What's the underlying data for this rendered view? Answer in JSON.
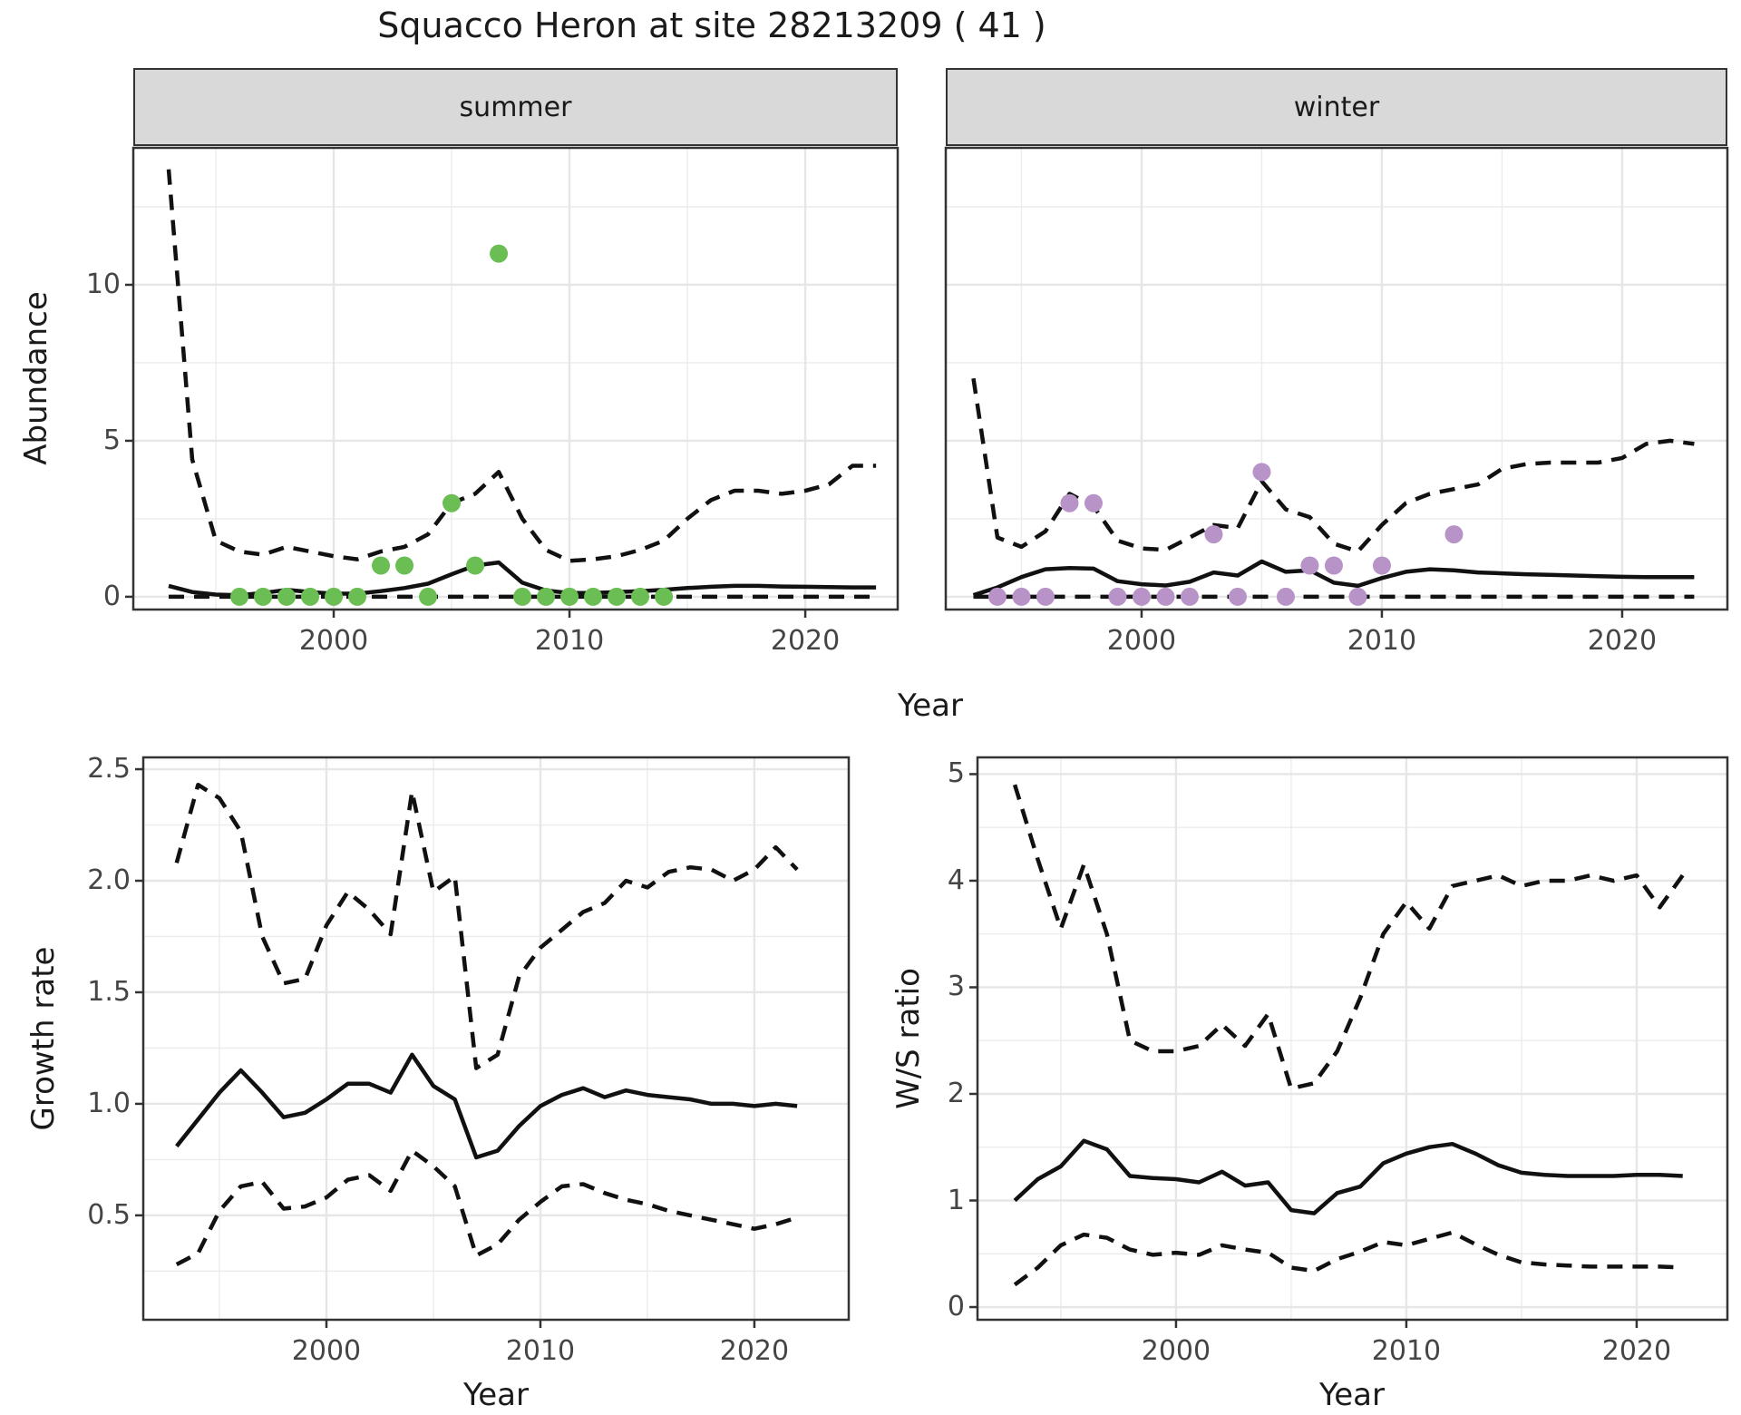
{
  "title": "Squacco Heron at site 28213209 ( 41 )",
  "axis_titles": {
    "y_abundance": "Abundance",
    "x_top": "Year",
    "y_growth": "Growth rate",
    "x_growth": "Year",
    "y_ws": "W/S ratio",
    "x_ws": "Year"
  },
  "colors": {
    "summer_point": "#6bbe53",
    "winter_point": "#b893c8",
    "line": "#111111",
    "grid_major": "#e6e6e6",
    "grid_minor": "#ececec",
    "panel_border": "#333333",
    "strip_bg": "#d9d9d9",
    "tick_label": "#454545",
    "text": "#1a1a1a"
  },
  "chart_data": [
    {
      "id": "abundance-summer",
      "type": "line",
      "facet_label": "summer",
      "x": [
        1993,
        1994,
        1995,
        1996,
        1997,
        1998,
        1999,
        2000,
        2001,
        2002,
        2003,
        2004,
        2005,
        2006,
        2007,
        2008,
        2009,
        2010,
        2011,
        2012,
        2013,
        2014,
        2015,
        2016,
        2017,
        2018,
        2019,
        2020,
        2021,
        2022,
        2023
      ],
      "series": [
        {
          "name": "median",
          "style": "solid",
          "values": [
            0.35,
            0.15,
            0.07,
            0.05,
            0.12,
            0.22,
            0.15,
            0.1,
            0.1,
            0.18,
            0.28,
            0.42,
            0.72,
            1.0,
            1.1,
            0.45,
            0.2,
            0.12,
            0.12,
            0.15,
            0.18,
            0.22,
            0.28,
            0.32,
            0.35,
            0.35,
            0.33,
            0.32,
            0.31,
            0.3,
            0.3
          ]
        },
        {
          "name": "upper_ci",
          "style": "dashed",
          "values": [
            13.7,
            4.4,
            1.8,
            1.45,
            1.35,
            1.6,
            1.45,
            1.3,
            1.2,
            1.45,
            1.6,
            2.0,
            3.0,
            3.3,
            4.0,
            2.5,
            1.5,
            1.15,
            1.2,
            1.3,
            1.5,
            1.8,
            2.5,
            3.1,
            3.4,
            3.4,
            3.3,
            3.4,
            3.6,
            4.2,
            4.2
          ]
        },
        {
          "name": "lower_ci",
          "style": "dashed",
          "values": [
            0,
            0,
            0,
            0,
            0,
            0,
            0,
            0,
            0,
            0,
            0,
            0,
            0,
            0,
            0,
            0,
            0,
            0,
            0,
            0,
            0,
            0,
            0,
            0,
            0,
            0,
            0,
            0,
            0,
            0,
            0
          ]
        }
      ],
      "points": {
        "name": "observed-counts-summer",
        "color": "#6bbe53",
        "x": [
          1996,
          1997,
          1998,
          1999,
          2000,
          2001,
          2002,
          2003,
          2004,
          2005,
          2006,
          2007,
          2008,
          2009,
          2010,
          2011,
          2012,
          2013,
          2014
        ],
        "y": [
          0,
          0,
          0,
          0,
          0,
          0,
          1,
          1,
          0,
          3,
          1,
          11,
          0,
          0,
          0,
          0,
          0,
          0,
          0
        ]
      },
      "xlim": [
        1991.5,
        2023.92
      ],
      "ylim": [
        -0.41,
        14.39
      ],
      "x_ticks": [
        2000,
        2010,
        2020
      ],
      "x_tick_labels": [
        "2000",
        "2010",
        "2020"
      ],
      "x_minor": [
        1995,
        2005,
        2015
      ],
      "y_ticks": [
        0,
        5,
        10
      ],
      "y_tick_labels": [
        "0",
        "5",
        "10"
      ],
      "y_minor": [
        2.5,
        7.5,
        12.5
      ],
      "grid": true,
      "legend": "none"
    },
    {
      "id": "abundance-winter",
      "type": "line",
      "facet_label": "winter",
      "x": [
        1993,
        1994,
        1995,
        1996,
        1997,
        1998,
        1999,
        2000,
        2001,
        2002,
        2003,
        2004,
        2005,
        2006,
        2007,
        2008,
        2009,
        2010,
        2011,
        2012,
        2013,
        2014,
        2015,
        2016,
        2017,
        2018,
        2019,
        2020,
        2021,
        2022,
        2023
      ],
      "series": [
        {
          "name": "median",
          "style": "solid",
          "values": [
            0.05,
            0.3,
            0.63,
            0.88,
            0.92,
            0.9,
            0.5,
            0.4,
            0.36,
            0.48,
            0.78,
            0.68,
            1.13,
            0.8,
            0.85,
            0.45,
            0.35,
            0.6,
            0.8,
            0.88,
            0.85,
            0.78,
            0.75,
            0.72,
            0.7,
            0.68,
            0.66,
            0.64,
            0.63,
            0.63,
            0.63
          ]
        },
        {
          "name": "upper_ci",
          "style": "dashed",
          "values": [
            7.0,
            1.9,
            1.6,
            2.1,
            3.3,
            2.9,
            1.8,
            1.55,
            1.5,
            1.9,
            2.3,
            2.2,
            3.7,
            2.8,
            2.55,
            1.7,
            1.45,
            2.3,
            3.0,
            3.3,
            3.45,
            3.6,
            4.1,
            4.25,
            4.3,
            4.3,
            4.3,
            4.45,
            4.9,
            5.0,
            4.9
          ]
        },
        {
          "name": "lower_ci",
          "style": "dashed",
          "values": [
            0,
            0,
            0,
            0,
            0,
            0,
            0,
            0,
            0,
            0,
            0,
            0,
            0,
            0,
            0,
            0,
            0,
            0,
            0,
            0,
            0,
            0,
            0,
            0,
            0,
            0,
            0,
            0,
            0,
            0,
            0
          ]
        }
      ],
      "points": {
        "name": "observed-counts-winter",
        "color": "#b893c8",
        "x": [
          1994,
          1995,
          1996,
          1997,
          1998,
          1999,
          2000,
          2001,
          2002,
          2003,
          2004,
          2005,
          2006,
          2007,
          2008,
          2009,
          2010,
          2013
        ],
        "y": [
          0,
          0,
          0,
          3,
          3,
          0,
          0,
          0,
          0,
          2,
          0,
          4,
          0,
          1,
          1,
          0,
          1,
          2
        ]
      },
      "xlim": [
        1991.85,
        2024.38
      ],
      "ylim": [
        -0.41,
        14.39
      ],
      "x_ticks": [
        2000,
        2010,
        2020
      ],
      "x_tick_labels": [
        "2000",
        "2010",
        "2020"
      ],
      "x_minor": [
        1995,
        2005,
        2015
      ],
      "y_ticks": [
        0,
        5,
        10
      ],
      "y_tick_labels": [
        "",
        "",
        ""
      ],
      "y_minor": [
        2.5,
        7.5,
        12.5
      ],
      "grid": true,
      "legend": "none"
    },
    {
      "id": "growth-rate",
      "type": "line",
      "facet_label": "",
      "x": [
        1993,
        1994,
        1995,
        1996,
        1997,
        1998,
        1999,
        2000,
        2001,
        2002,
        2003,
        2004,
        2005,
        2006,
        2007,
        2008,
        2009,
        2010,
        2011,
        2012,
        2013,
        2014,
        2015,
        2016,
        2017,
        2018,
        2019,
        2020,
        2021,
        2022
      ],
      "series": [
        {
          "name": "median",
          "style": "solid",
          "values": [
            0.81,
            0.93,
            1.05,
            1.15,
            1.05,
            0.94,
            0.96,
            1.02,
            1.09,
            1.09,
            1.05,
            1.22,
            1.08,
            1.02,
            0.76,
            0.79,
            0.9,
            0.99,
            1.04,
            1.07,
            1.03,
            1.06,
            1.04,
            1.03,
            1.02,
            1.0,
            1.0,
            0.99,
            1.0,
            0.99
          ]
        },
        {
          "name": "upper_ci",
          "style": "dashed",
          "values": [
            2.08,
            2.43,
            2.37,
            2.22,
            1.75,
            1.54,
            1.56,
            1.8,
            1.95,
            1.87,
            1.76,
            2.4,
            1.95,
            2.02,
            1.16,
            1.22,
            1.57,
            1.7,
            1.78,
            1.86,
            1.9,
            2.0,
            1.97,
            2.04,
            2.06,
            2.05,
            2.0,
            2.05,
            2.15,
            2.05
          ]
        },
        {
          "name": "lower_ci",
          "style": "dashed",
          "values": [
            0.28,
            0.33,
            0.52,
            0.63,
            0.65,
            0.53,
            0.54,
            0.58,
            0.66,
            0.68,
            0.61,
            0.79,
            0.72,
            0.63,
            0.32,
            0.37,
            0.48,
            0.56,
            0.63,
            0.64,
            0.6,
            0.57,
            0.55,
            0.52,
            0.5,
            0.48,
            0.46,
            0.44,
            0.46,
            0.49
          ]
        }
      ],
      "points": null,
      "xlim": [
        1991.44,
        2024.41
      ],
      "ylim": [
        0.032,
        2.553
      ],
      "x_ticks": [
        2000,
        2010,
        2020
      ],
      "x_tick_labels": [
        "2000",
        "2010",
        "2020"
      ],
      "x_minor": [
        1995,
        2005,
        2015
      ],
      "y_ticks": [
        0.5,
        1.0,
        1.5,
        2.0,
        2.5
      ],
      "y_tick_labels": [
        "0.5",
        "1.0",
        "1.5",
        "2.0",
        "2.5"
      ],
      "y_minor": [
        0.25,
        0.75,
        1.25,
        1.75,
        2.25
      ],
      "grid": true,
      "legend": "none"
    },
    {
      "id": "ws-ratio",
      "type": "line",
      "facet_label": "",
      "x": [
        1993,
        1994,
        1995,
        1996,
        1997,
        1998,
        1999,
        2000,
        2001,
        2002,
        2003,
        2004,
        2005,
        2006,
        2007,
        2008,
        2009,
        2010,
        2011,
        2012,
        2013,
        2014,
        2015,
        2016,
        2017,
        2018,
        2019,
        2020,
        2021,
        2022
      ],
      "series": [
        {
          "name": "median",
          "style": "solid",
          "values": [
            1.0,
            1.2,
            1.32,
            1.56,
            1.48,
            1.23,
            1.21,
            1.2,
            1.17,
            1.27,
            1.14,
            1.17,
            0.91,
            0.88,
            1.07,
            1.13,
            1.35,
            1.44,
            1.5,
            1.53,
            1.44,
            1.33,
            1.26,
            1.24,
            1.23,
            1.23,
            1.23,
            1.24,
            1.24,
            1.23
          ]
        },
        {
          "name": "upper_ci",
          "style": "dashed",
          "values": [
            4.9,
            4.2,
            3.55,
            4.15,
            3.5,
            2.5,
            2.4,
            2.4,
            2.45,
            2.65,
            2.45,
            2.75,
            2.05,
            2.1,
            2.4,
            2.9,
            3.5,
            3.8,
            3.55,
            3.95,
            4.0,
            4.05,
            3.95,
            4.0,
            4.0,
            4.05,
            4.0,
            4.05,
            3.75,
            4.05
          ]
        },
        {
          "name": "lower_ci",
          "style": "dashed",
          "values": [
            0.21,
            0.37,
            0.58,
            0.68,
            0.65,
            0.54,
            0.49,
            0.51,
            0.49,
            0.58,
            0.54,
            0.51,
            0.37,
            0.34,
            0.45,
            0.52,
            0.61,
            0.58,
            0.64,
            0.7,
            0.59,
            0.49,
            0.42,
            0.4,
            0.39,
            0.38,
            0.38,
            0.38,
            0.38,
            0.37
          ]
        }
      ],
      "points": null,
      "xlim": [
        1991.38,
        2023.94
      ],
      "ylim": [
        -0.119,
        5.157
      ],
      "x_ticks": [
        2000,
        2010,
        2020
      ],
      "x_tick_labels": [
        "2000",
        "2010",
        "2020"
      ],
      "x_minor": [
        1995,
        2005,
        2015
      ],
      "y_ticks": [
        0,
        1,
        2,
        3,
        4,
        5
      ],
      "y_tick_labels": [
        "0",
        "1",
        "2",
        "3",
        "4",
        "5"
      ],
      "y_minor": [
        0.5,
        1.5,
        2.5,
        3.5,
        4.5
      ],
      "grid": true,
      "legend": "none"
    }
  ]
}
